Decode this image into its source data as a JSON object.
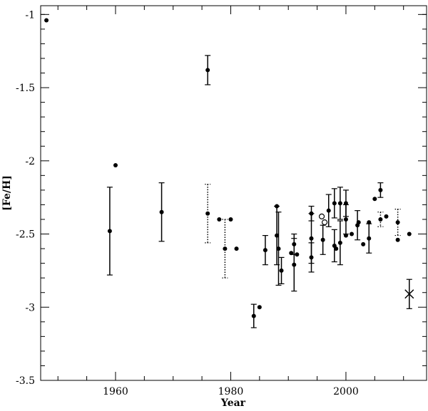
{
  "chart_data": {
    "type": "scatter",
    "x_label": "Year",
    "y_label": "[Fe/H]",
    "xlim": [
      1947,
      2014
    ],
    "ylim": [
      -3.5,
      -0.94
    ],
    "xticks": [
      1960,
      1980,
      2000
    ],
    "yticks": [
      -3.5,
      -3,
      -2.5,
      -2,
      -1.5,
      -1
    ],
    "x_minor_ticks": [
      1950,
      1955,
      1965,
      1970,
      1975,
      1985,
      1990,
      1995,
      2005,
      2010
    ],
    "y_minor_ticks": [
      -3.4,
      -3.3,
      -3.2,
      -3.1,
      -2.9,
      -2.8,
      -2.7,
      -2.6,
      -2.4,
      -2.3,
      -2.2,
      -2.1,
      -1.9,
      -1.8,
      -1.7,
      -1.6,
      -1.4,
      -1.3,
      -1.2,
      -1.1,
      -1.0
    ],
    "color": "#000000",
    "series": [
      {
        "marker": "filled",
        "error_style": "solid",
        "x": [
          1948,
          1959,
          1960,
          1968,
          1976,
          1978,
          1980,
          1981,
          1984,
          1985,
          1986,
          1988,
          1988,
          1988.3,
          1988.8,
          1990.5,
          1991,
          1991,
          1991.5,
          1994,
          1994,
          1994,
          1996,
          1997,
          1998,
          1998,
          1998.3,
          1999,
          1999,
          2000,
          2000,
          2000,
          2001,
          2002,
          2002.2,
          2003,
          2004,
          2004,
          2005,
          2006,
          2007,
          2009,
          2011
        ],
        "values": [
          -1.04,
          -2.48,
          -2.03,
          -2.35,
          -1.38,
          -2.4,
          -2.4,
          -2.6,
          -3.06,
          -3.0,
          -2.61,
          -2.31,
          -2.51,
          -2.6,
          -2.75,
          -2.63,
          -2.71,
          -2.57,
          -2.64,
          -2.66,
          -2.36,
          -2.53,
          -2.54,
          -2.34,
          -2.29,
          -2.58,
          -2.6,
          -2.56,
          -2.29,
          -2.29,
          -2.4,
          -2.51,
          -2.5,
          -2.44,
          -2.42,
          -2.57,
          -2.42,
          -2.53,
          -2.26,
          -2.2,
          -2.38,
          -2.54,
          -2.5
        ],
        "errors": [
          null,
          0.3,
          null,
          0.2,
          0.1,
          null,
          null,
          null,
          0.08,
          null,
          0.1,
          null,
          0.2,
          0.25,
          0.09,
          null,
          0.18,
          0.07,
          null,
          0.1,
          0.05,
          0.17,
          0.1,
          0.11,
          0.1,
          0.11,
          null,
          0.15,
          0.11,
          0.09,
          0.1,
          null,
          null,
          0.1,
          null,
          null,
          null,
          0.1,
          null,
          0.05,
          null,
          null,
          null
        ]
      },
      {
        "marker": "filled",
        "error_style": "dotted",
        "x": [
          1976,
          1979,
          2006,
          2009
        ],
        "values": [
          -2.36,
          -2.6,
          -2.4,
          -2.42
        ],
        "errors": [
          0.2,
          0.2,
          0.05,
          0.09
        ]
      },
      {
        "marker": "open",
        "x": [
          1995.8,
          1996.3
        ],
        "values": [
          -2.38,
          -2.42
        ]
      },
      {
        "marker": "cross",
        "error_style": "solid",
        "x": [
          2011
        ],
        "values": [
          -2.91
        ],
        "errors": [
          0.1
        ]
      }
    ]
  }
}
